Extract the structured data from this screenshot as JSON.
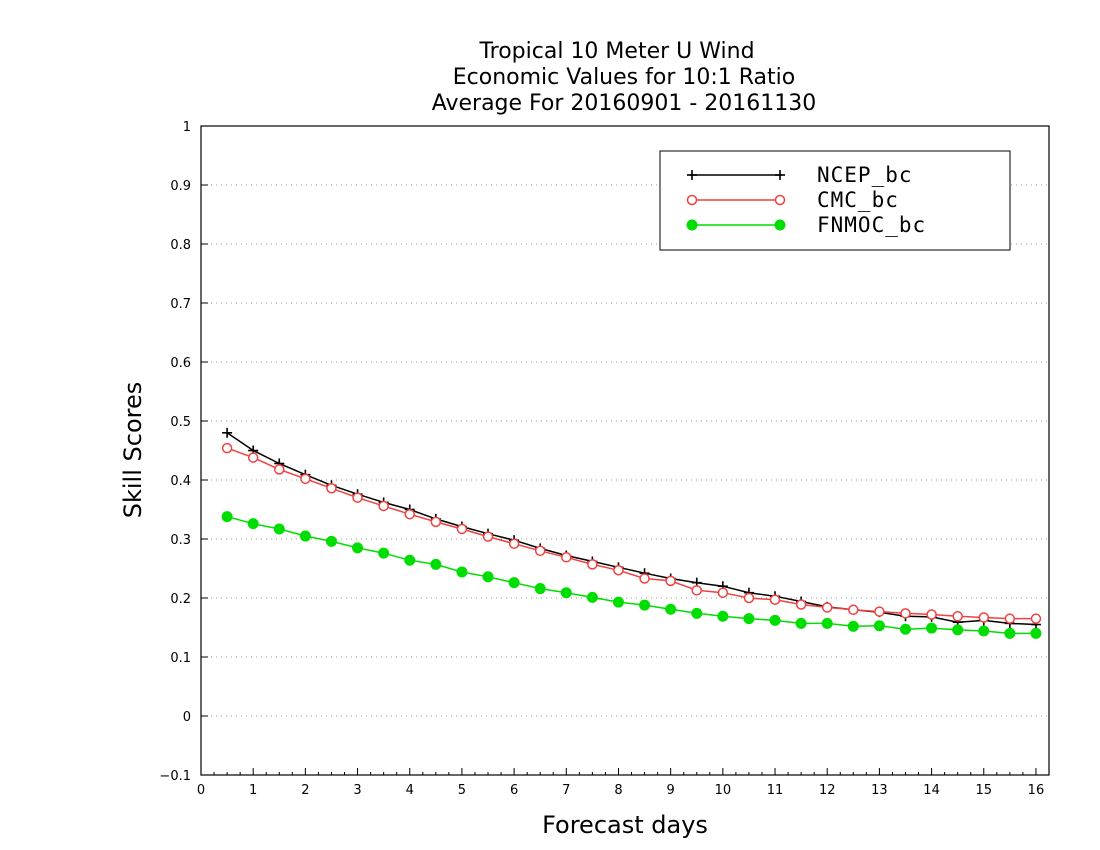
{
  "chart_data": {
    "type": "line",
    "title_lines": [
      "Tropical 10 Meter U Wind",
      "Economic Values for 10:1 Ratio",
      "Average For 20160901 - 20161130"
    ],
    "xlabel": "Forecast days",
    "ylabel": "Skill Scores",
    "xlim": [
      0,
      16.25
    ],
    "ylim": [
      -0.1,
      1
    ],
    "x_ticks": [
      0,
      1,
      2,
      3,
      4,
      5,
      6,
      7,
      8,
      9,
      10,
      11,
      12,
      13,
      14,
      15,
      16
    ],
    "y_ticks": [
      -0.1,
      0,
      0.1,
      0.2,
      0.3,
      0.4,
      0.5,
      0.6,
      0.7,
      0.8,
      0.9,
      1
    ],
    "y_tick_labels": [
      "−0.1",
      "0",
      "0.1",
      "0.2",
      "0.3",
      "0.4",
      "0.5",
      "0.6",
      "0.7",
      "0.8",
      "0.9",
      "1"
    ],
    "grid": "horizontal dotted",
    "legend_position": "top-right",
    "x": [
      0.5,
      1,
      1.5,
      2,
      2.5,
      3,
      3.5,
      4,
      4.5,
      5,
      5.5,
      6,
      6.5,
      7,
      7.5,
      8,
      8.5,
      9,
      9.5,
      10,
      10.5,
      11,
      11.5,
      12,
      12.5,
      13,
      13.5,
      14,
      14.5,
      15,
      15.5,
      16
    ],
    "series": [
      {
        "name": "NCEP_bc",
        "color": "#000000",
        "marker": "plus",
        "values": [
          0.48,
          0.45,
          0.428,
          0.409,
          0.391,
          0.376,
          0.362,
          0.35,
          0.334,
          0.321,
          0.309,
          0.298,
          0.284,
          0.272,
          0.262,
          0.252,
          0.242,
          0.233,
          0.226,
          0.22,
          0.209,
          0.203,
          0.194,
          0.185,
          0.18,
          0.176,
          0.169,
          0.168,
          0.159,
          0.162,
          0.157,
          0.155
        ]
      },
      {
        "name": "CMC_bc",
        "color": "#f04040",
        "marker": "open-circle",
        "values": [
          0.454,
          0.438,
          0.418,
          0.402,
          0.386,
          0.37,
          0.356,
          0.342,
          0.329,
          0.317,
          0.304,
          0.292,
          0.28,
          0.269,
          0.257,
          0.247,
          0.233,
          0.229,
          0.213,
          0.209,
          0.2,
          0.197,
          0.189,
          0.184,
          0.18,
          0.177,
          0.174,
          0.172,
          0.169,
          0.167,
          0.165,
          0.165
        ]
      },
      {
        "name": "FNMOC_bc",
        "color": "#00dd00",
        "marker": "filled-circle",
        "values": [
          0.338,
          0.326,
          0.317,
          0.305,
          0.296,
          0.285,
          0.276,
          0.264,
          0.257,
          0.244,
          0.236,
          0.226,
          0.216,
          0.209,
          0.201,
          0.193,
          0.188,
          0.181,
          0.174,
          0.169,
          0.165,
          0.162,
          0.157,
          0.157,
          0.152,
          0.153,
          0.147,
          0.149,
          0.146,
          0.144,
          0.14,
          0.14
        ]
      }
    ]
  }
}
